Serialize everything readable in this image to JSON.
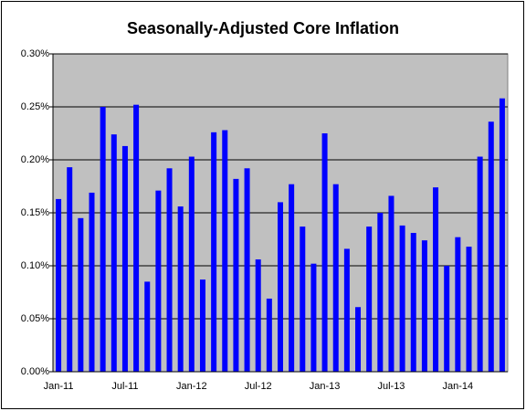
{
  "chart_data": {
    "type": "bar",
    "title": "Seasonally-Adjusted Core Inflation",
    "categories": [
      "Jan-11",
      null,
      null,
      null,
      null,
      null,
      "Jul-11",
      null,
      null,
      null,
      null,
      null,
      "Jan-12",
      null,
      null,
      null,
      null,
      null,
      "Jul-12",
      null,
      null,
      null,
      null,
      null,
      "Jan-13",
      null,
      null,
      null,
      null,
      null,
      "Jul-13",
      null,
      null,
      null,
      null,
      null,
      "Jan-14",
      null,
      null,
      null,
      null
    ],
    "values": [
      0.163,
      0.193,
      0.145,
      0.169,
      0.25,
      0.224,
      0.213,
      0.252,
      0.085,
      0.171,
      0.192,
      0.156,
      0.203,
      0.087,
      0.226,
      0.228,
      0.182,
      0.192,
      0.106,
      0.069,
      0.16,
      0.177,
      0.137,
      0.102,
      0.225,
      0.177,
      0.116,
      0.061,
      0.137,
      0.15,
      0.166,
      0.138,
      0.131,
      0.124,
      0.174,
      0.1,
      0.127,
      0.118,
      0.203,
      0.236,
      0.258
    ],
    "color": "#0000ff",
    "ylim": [
      0,
      0.3
    ],
    "yticks": [
      {
        "value": 0,
        "label": "0.00%"
      },
      {
        "value": 0.05,
        "label": "0.05%"
      },
      {
        "value": 0.1,
        "label": "0.10%"
      },
      {
        "value": 0.15,
        "label": "0.15%"
      },
      {
        "value": 0.2,
        "label": "0.20%"
      },
      {
        "value": 0.25,
        "label": "0.25%"
      },
      {
        "value": 0.3,
        "label": "0.30%"
      }
    ],
    "grid": true
  }
}
